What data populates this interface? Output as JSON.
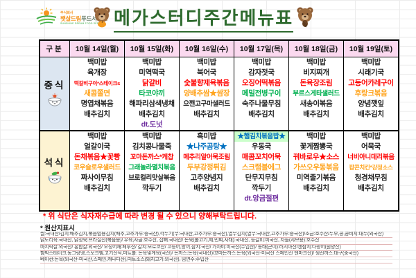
{
  "colors": {
    "black": "#1f1f1f",
    "red": "#ff0000",
    "orange": "#ffa41e",
    "green": "#00b050",
    "purple": "#7030a0",
    "blue": "#0070c0",
    "highlight": "#ccffcc",
    "header_pink": "#fbd9ef",
    "lunch_blue": "#dce6f1",
    "dinner_cream": "#fdf3d2",
    "title_green": "#2d6a2d",
    "note_red": "#ff0000",
    "brand_orange": "#f5941e",
    "brand_green": "#3fae49"
  },
  "logo": {
    "company_prefix": "주식회사",
    "company_main": "햇살드림",
    "company_tail": "푸드서비스",
    "company_en": "SUNSHINE DREAM FOOD SERVICE"
  },
  "title": {
    "text": "메가스터디주간메뉴표"
  },
  "table": {
    "corner_label": "구분",
    "days": [
      "10월 14일(월)",
      "10월 15일(화)",
      "10월 16일(수)",
      "10월 17일(목)",
      "10월 18일(금)",
      "10월 19일(토)"
    ],
    "rows": [
      {
        "label": "중식",
        "cells": [
          [
            {
              "t": "백미밥",
              "c": "black"
            },
            {
              "t": "육개장",
              "c": "black"
            },
            {
              "t": "떡갈비구이*스테이크s",
              "c": "red"
            },
            {
              "t": "새콤쫄면",
              "c": "orange"
            },
            {
              "t": "명엽채볶음",
              "c": "black"
            },
            {
              "t": "배추김치",
              "c": "black"
            }
          ],
          [
            {
              "t": "백미밥",
              "c": "black"
            },
            {
              "t": "미역떡국",
              "c": "black"
            },
            {
              "t": "닭갈비",
              "c": "red"
            },
            {
              "t": "타코야끼",
              "c": "green"
            },
            {
              "t": "해파리삼색냉채",
              "c": "black"
            },
            {
              "t": "배추김치",
              "c": "black"
            },
            {
              "t": "dt.도넛",
              "c": "purple"
            }
          ],
          [
            {
              "t": "백미밥",
              "c": "black"
            },
            {
              "t": "북어국",
              "c": "black"
            },
            {
              "t": "숯불향제육볶음",
              "c": "red"
            },
            {
              "t": "양배추쌈★쌈장",
              "c": "orange"
            },
            {
              "t": "으깬고구마샐러드",
              "c": "black"
            },
            {
              "t": "배추김치",
              "c": "black"
            }
          ],
          [
            {
              "t": "백미밥",
              "c": "black"
            },
            {
              "t": "감자젓국",
              "c": "black"
            },
            {
              "t": "오징어떡볶음",
              "c": "red"
            },
            {
              "t": "메밀전병구이",
              "c": "green"
            },
            {
              "t": "숙주나물무침",
              "c": "black"
            },
            {
              "t": "배추김치",
              "c": "black"
            }
          ],
          [
            {
              "t": "백미밥",
              "c": "black"
            },
            {
              "t": "비지찌개",
              "c": "black"
            },
            {
              "t": "돈육장조림",
              "c": "red"
            },
            {
              "t": "부르스게타샐러드",
              "c": "green"
            },
            {
              "t": "새송이볶음",
              "c": "black"
            },
            {
              "t": "배추김치",
              "c": "black"
            }
          ],
          [
            {
              "t": "백미밥",
              "c": "black"
            },
            {
              "t": "시래기국",
              "c": "black"
            },
            {
              "t": "고등어카레구이",
              "c": "red"
            },
            {
              "t": "후랑크볶음",
              "c": "orange"
            },
            {
              "t": "양념깻잎",
              "c": "black"
            },
            {
              "t": "배추김치",
              "c": "black"
            }
          ]
        ]
      },
      {
        "label": "석식",
        "cells": [
          [
            {
              "t": "백미밥",
              "c": "black"
            },
            {
              "t": "얼갈이국",
              "c": "black"
            },
            {
              "t": "돈채볶음★꽃빵",
              "c": "red"
            },
            {
              "t": "코우슬로우샐러드",
              "c": "orange"
            },
            {
              "t": "짜사이무침",
              "c": "black"
            },
            {
              "t": "배추김치",
              "c": "black"
            }
          ],
          [
            {
              "t": "백미밥",
              "c": "black"
            },
            {
              "t": "김치콩나물죽",
              "c": "black"
            },
            {
              "t": "꼬마돈까스*케찹",
              "c": "red"
            },
            {
              "t": "그래놀라멸치볶음",
              "c": "green"
            },
            {
              "t": "브로컬리맛살볶음",
              "c": "black"
            },
            {
              "t": "깍두기",
              "c": "black"
            }
          ],
          [
            {
              "t": "흑미밥",
              "c": "black"
            },
            {
              "t": "★나주곰탕★",
              "c": "blue"
            },
            {
              "t": "메추리알어묵조림",
              "c": "red"
            },
            {
              "t": "두부강정튀김",
              "c": "orange"
            },
            {
              "t": "고추양념지",
              "c": "black"
            },
            {
              "t": "배추김치",
              "c": "black"
            }
          ],
          [
            {
              "t": "★햄김치볶음밥★",
              "c": "blue",
              "hl": true
            },
            {
              "t": "우동국",
              "c": "black"
            },
            {
              "t": "매콤꼬치어묵",
              "c": "red"
            },
            {
              "t": "스크램블에그",
              "c": "orange"
            },
            {
              "t": "단무지무침",
              "c": "black"
            },
            {
              "t": "깍두기",
              "c": "black"
            },
            {
              "t": "dt.앙금절편",
              "c": "purple"
            }
          ],
          [
            {
              "t": "백미밥",
              "c": "black"
            },
            {
              "t": "꽃게짬뽕국",
              "c": "black"
            },
            {
              "t": "꿔바로우★소스",
              "c": "red"
            },
            {
              "t": "가쓰오우동볶음",
              "c": "orange"
            },
            {
              "t": "미역줄기볶음",
              "c": "black"
            },
            {
              "t": "배추김치",
              "c": "black"
            }
          ],
          [
            {
              "t": "백미밥",
              "c": "black"
            },
            {
              "t": "어묵국",
              "c": "black"
            },
            {
              "t": "너비아니데리볶음",
              "c": "red"
            },
            {
              "t": "팝콘치킨*강정소스",
              "c": "orange"
            },
            {
              "t": "청경채무침",
              "c": "black"
            },
            {
              "t": "배추김치",
              "c": "black"
            }
          ]
        ]
      }
    ]
  },
  "notes": {
    "change_notice": "* 위 식단은 식자재수급에 따라 변경 될 수 있으니 양해부탁드립니다."
  },
  "origin": {
    "title": "* 원산지표시",
    "lines": [
      "쌀:국내산/김치:배추김치,볶음밥용김치(배추,고추가루:중국산),깍두기(무:국내산,고추가루:중국산),열무김치(열무:국내산,고추가루:중국산)/소금:호주산/두부,콩,콩비지:대두(외국산)",
      "닭도리육:국내산, 닭정육:브라질산(볶음용)/ 우육,사골:호주산, 잡뼈:국내산/ 돈육(불고기,제,민찌,사태):국내산, 등갈비:미국산, 차돌(샤브용):호주산",
      "바지락살:외국산/ 홍합살:외국산/ 오징어채:페루산/ 갈치:모로코산/ 고등어,방어,삼치:국산/ 가자미:미국산(수입산)/ 동태(곤이):러시아산/캔참치:다랑어(원양산)",
      "함박스테이크,동그랑땡,스모크햄,고기산적,미트볼: 돈육및계육(국산)/ 돈까스:돈육(국내산)/꼬마돈까스:돈육(외국산-미국산 스페인산 덴마크산)/ 생선까스:대구(중국산)",
      "베이컨:돈육(외국산-미국산,스페인,캐나다산),미트소스(돼지고기:외국산), 임연수:수입산"
    ]
  }
}
